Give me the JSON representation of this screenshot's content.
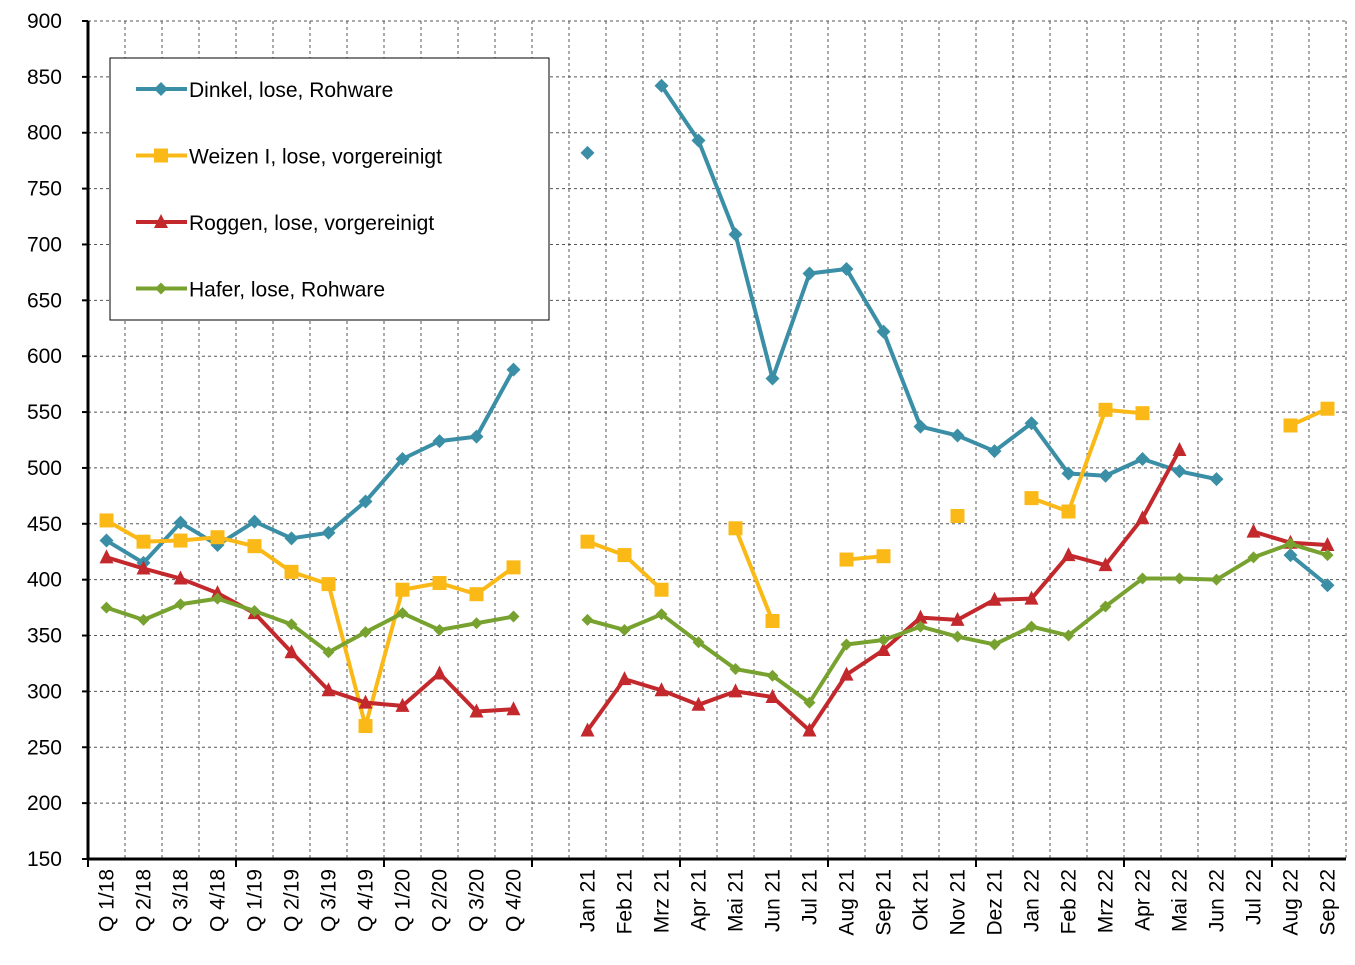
{
  "chart_data": {
    "type": "line",
    "categories": [
      "Q 1/18",
      "Q 2/18",
      "Q 3/18",
      "Q 4/18",
      "Q 1/19",
      "Q 2/19",
      "Q 3/19",
      "Q 4/19",
      "Q 1/20",
      "Q 2/20",
      "Q 3/20",
      "Q 4/20",
      null,
      "Jan 21",
      "Feb 21",
      "Mrz 21",
      "Apr 21",
      "Mai 21",
      "Jun 21",
      "Jul 21",
      "Aug 21",
      "Sep 21",
      "Okt 21",
      "Nov 21",
      "Dez 21",
      "Jan 22",
      "Feb 22",
      "Mrz 22",
      "Apr 22",
      "Mai 22",
      "Jun 22",
      "Jul 22",
      "Aug 22",
      "Sep 22"
    ],
    "series": [
      {
        "name": "Dinkel, lose, Rohware",
        "color": "#3a8ea6",
        "marker": "diamond",
        "values": [
          435,
          415,
          451,
          431,
          452,
          437,
          442,
          470,
          508,
          524,
          528,
          588,
          null,
          782,
          null,
          842,
          793,
          709,
          580,
          674,
          678,
          622,
          537,
          529,
          515,
          540,
          495,
          493,
          508,
          497,
          490,
          null,
          422,
          395
        ]
      },
      {
        "name": "Weizen I, lose, vorgereinigt",
        "color": "#fbb917",
        "marker": "square",
        "values": [
          453,
          434,
          435,
          438,
          430,
          407,
          396,
          269,
          391,
          397,
          387,
          411,
          null,
          434,
          422,
          391,
          null,
          446,
          363,
          null,
          418,
          421,
          null,
          457,
          null,
          473,
          461,
          552,
          549,
          null,
          null,
          null,
          538,
          553
        ]
      },
      {
        "name": "Roggen, lose, vorgereinigt",
        "color": "#c3282d",
        "marker": "triangle",
        "values": [
          420,
          410,
          401,
          388,
          370,
          335,
          301,
          290,
          287,
          316,
          282,
          284,
          null,
          265,
          311,
          301,
          288,
          300,
          295,
          265,
          315,
          337,
          366,
          364,
          382,
          383,
          422,
          413,
          455,
          516,
          null,
          443,
          433,
          431
        ]
      },
      {
        "name": "Hafer, lose, Rohware",
        "color": "#78a22f",
        "marker": "diamond",
        "values": [
          375,
          364,
          378,
          383,
          372,
          360,
          335,
          353,
          370,
          355,
          361,
          367,
          null,
          364,
          355,
          369,
          344,
          320,
          314,
          290,
          342,
          346,
          358,
          349,
          342,
          358,
          350,
          376,
          401,
          401,
          400,
          420,
          432,
          422
        ]
      }
    ],
    "ylim": [
      150,
      900
    ],
    "yticks": [
      150,
      200,
      250,
      300,
      350,
      400,
      450,
      500,
      550,
      600,
      650,
      700,
      750,
      800,
      850,
      900
    ],
    "grid": true,
    "legend": "top-left"
  }
}
